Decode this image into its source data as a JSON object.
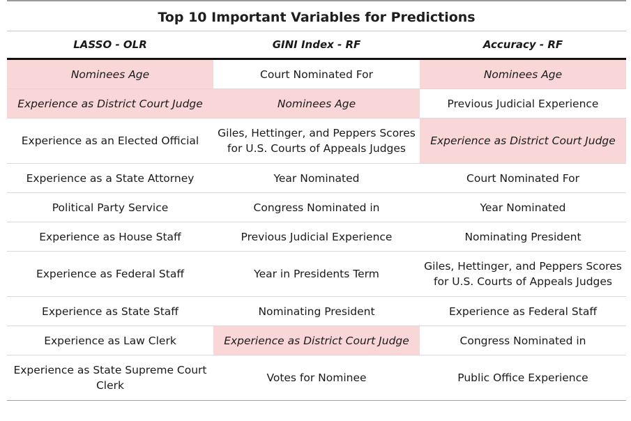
{
  "table": {
    "title": "Top 10 Important Variables for Predictions",
    "columns": [
      "LASSO - OLR",
      "GINI Index - RF",
      "Accuracy - RF"
    ],
    "rows": [
      {
        "cells": [
          {
            "text": "Nominees Age",
            "highlight": true
          },
          {
            "text": "Court Nominated For",
            "highlight": false
          },
          {
            "text": "Nominees Age",
            "highlight": true
          }
        ]
      },
      {
        "cells": [
          {
            "text": "Experience as District Court Judge",
            "highlight": true
          },
          {
            "text": "Nominees Age",
            "highlight": true
          },
          {
            "text": "Previous Judicial Experience",
            "highlight": false
          }
        ]
      },
      {
        "cells": [
          {
            "text": "Experience as an Elected Official",
            "highlight": false
          },
          {
            "text": "Giles, Hettinger, and Peppers Scores for U.S. Courts of Appeals Judges",
            "highlight": false
          },
          {
            "text": "Experience as District Court Judge",
            "highlight": true
          }
        ]
      },
      {
        "cells": [
          {
            "text": "Experience as a State Attorney",
            "highlight": false
          },
          {
            "text": "Year Nominated",
            "highlight": false
          },
          {
            "text": "Court Nominated For",
            "highlight": false
          }
        ]
      },
      {
        "cells": [
          {
            "text": "Political Party Service",
            "highlight": false
          },
          {
            "text": "Congress Nominated in",
            "highlight": false
          },
          {
            "text": "Year Nominated",
            "highlight": false
          }
        ]
      },
      {
        "cells": [
          {
            "text": "Experience as House Staff",
            "highlight": false
          },
          {
            "text": "Previous Judicial Experience",
            "highlight": false
          },
          {
            "text": "Nominating President",
            "highlight": false
          }
        ]
      },
      {
        "cells": [
          {
            "text": "Experience as Federal Staff",
            "highlight": false
          },
          {
            "text": "Year in Presidents Term",
            "highlight": false
          },
          {
            "text": "Giles, Hettinger, and Peppers Scores for U.S. Courts of Appeals Judges",
            "highlight": false
          }
        ]
      },
      {
        "cells": [
          {
            "text": "Experience as State Staff",
            "highlight": false
          },
          {
            "text": "Nominating President",
            "highlight": false
          },
          {
            "text": "Experience as Federal Staff",
            "highlight": false
          }
        ]
      },
      {
        "cells": [
          {
            "text": "Experience as Law Clerk",
            "highlight": false
          },
          {
            "text": "Experience as District Court Judge",
            "highlight": true
          },
          {
            "text": "Congress Nominated in",
            "highlight": false
          }
        ]
      },
      {
        "cells": [
          {
            "text": "Experience as State Supreme Court Clerk",
            "highlight": false
          },
          {
            "text": "Votes for Nominee",
            "highlight": false
          },
          {
            "text": "Public Office Experience",
            "highlight": false
          }
        ]
      }
    ]
  },
  "colors": {
    "highlight": "#f9d7d8",
    "header_rule": "#111111",
    "row_rule": "#d9d9d9"
  }
}
